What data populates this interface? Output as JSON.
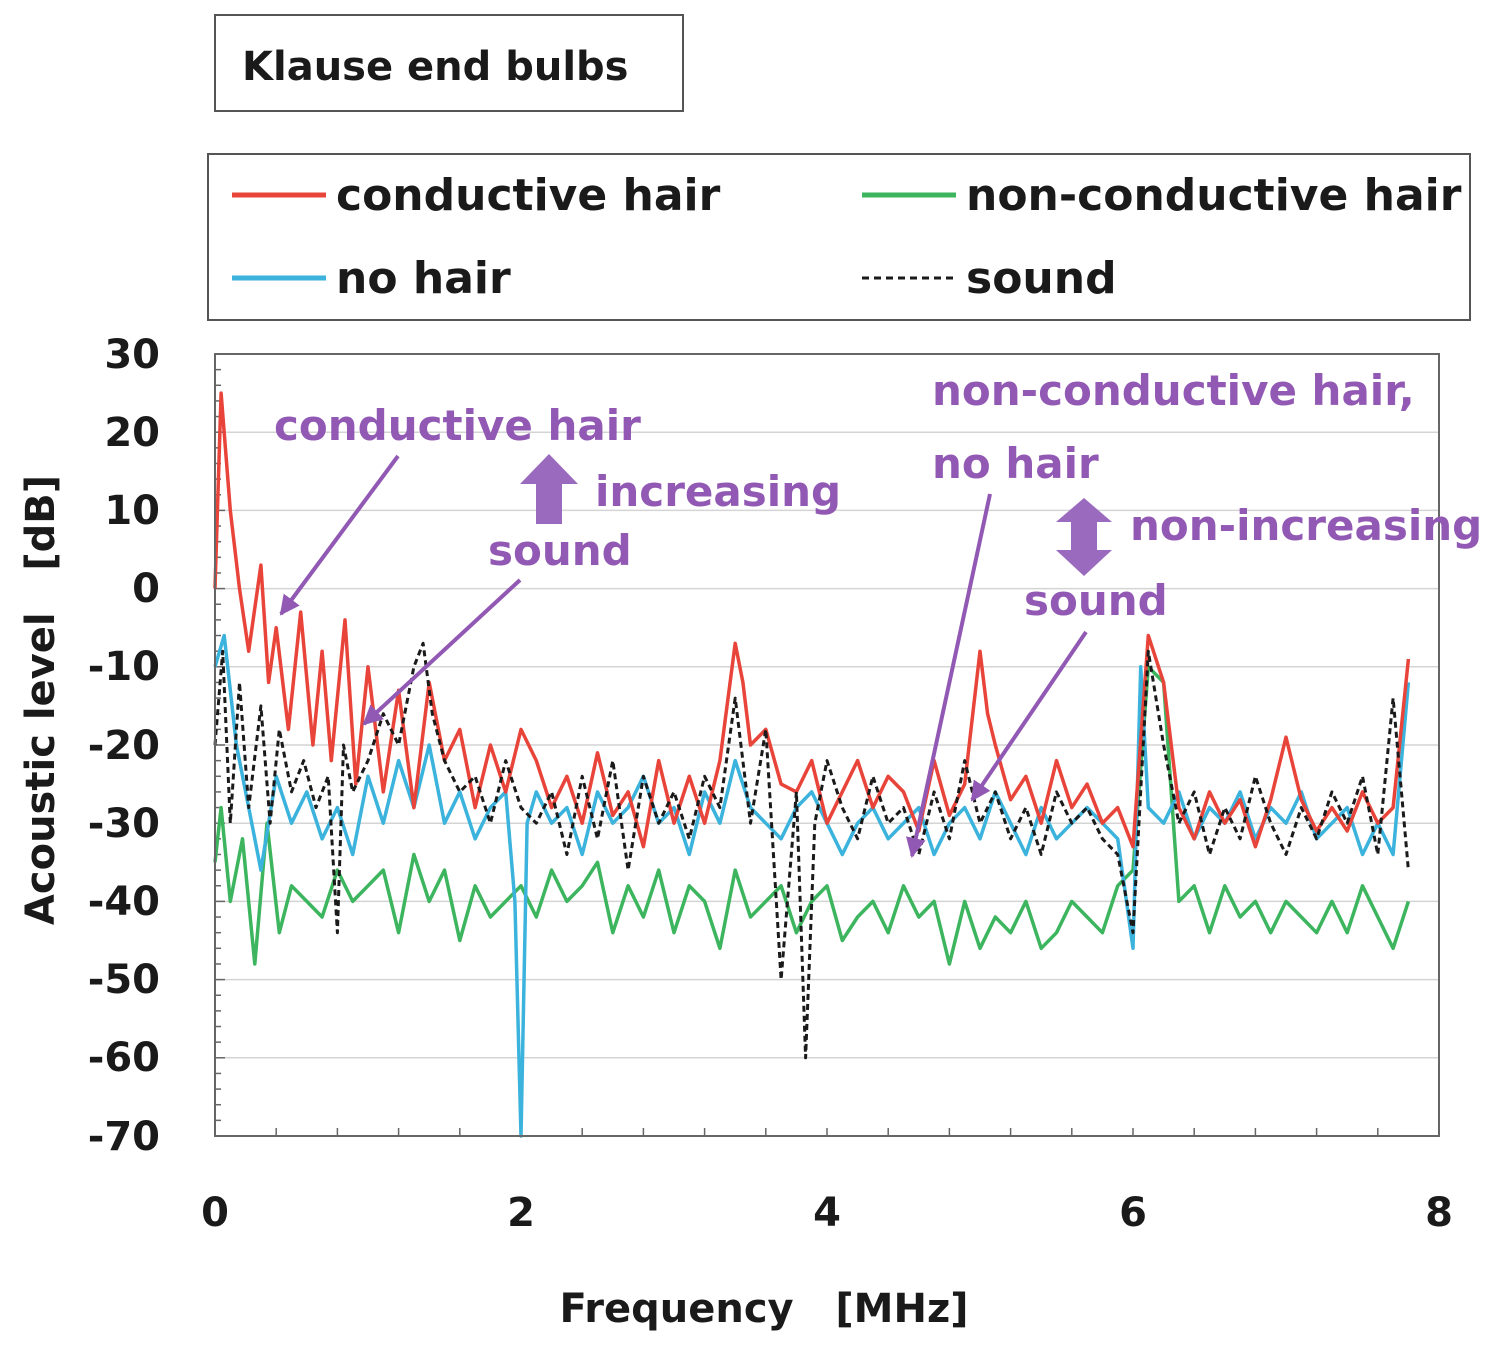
{
  "chart_data": {
    "type": "line",
    "title": "Klause end bulbs",
    "xlabel": "Frequency   [MHz]",
    "ylabel": "Acoustic level   [dB]",
    "xlim": [
      0,
      8
    ],
    "ylim": [
      -70,
      30
    ],
    "x_ticks": [
      "0",
      "2",
      "4",
      "6",
      "8"
    ],
    "y_ticks": [
      "30",
      "20",
      "10",
      "0",
      "-10",
      "-20",
      "-30",
      "-40",
      "-50",
      "-60",
      "-70"
    ],
    "grid": true,
    "legend": [
      {
        "label": "conductive hair",
        "color": "#e8443a",
        "dash": false
      },
      {
        "label": "non-conductive hair",
        "color": "#3cb55e",
        "dash": false
      },
      {
        "label": "no hair",
        "color": "#3bb3dc",
        "dash": false
      },
      {
        "label": "sound",
        "color": "#1a1a1a",
        "dash": true
      }
    ],
    "series": [
      {
        "name": "conductive hair",
        "color": "#e8443a",
        "x": [
          0.0,
          0.04,
          0.1,
          0.16,
          0.22,
          0.3,
          0.35,
          0.4,
          0.48,
          0.56,
          0.64,
          0.7,
          0.76,
          0.85,
          0.92,
          1.0,
          1.1,
          1.2,
          1.3,
          1.4,
          1.5,
          1.6,
          1.7,
          1.8,
          1.9,
          2.0,
          2.1,
          2.2,
          2.3,
          2.4,
          2.5,
          2.6,
          2.7,
          2.8,
          2.9,
          3.0,
          3.1,
          3.2,
          3.3,
          3.4,
          3.45,
          3.5,
          3.6,
          3.7,
          3.8,
          3.9,
          4.0,
          4.1,
          4.2,
          4.3,
          4.4,
          4.5,
          4.6,
          4.7,
          4.8,
          4.9,
          5.0,
          5.05,
          5.1,
          5.2,
          5.3,
          5.4,
          5.5,
          5.6,
          5.7,
          5.8,
          5.9,
          6.0,
          6.1,
          6.2,
          6.3,
          6.4,
          6.5,
          6.6,
          6.7,
          6.8,
          6.9,
          7.0,
          7.1,
          7.2,
          7.3,
          7.4,
          7.5,
          7.6,
          7.7,
          7.8
        ],
        "y": [
          0,
          25,
          10,
          0,
          -8,
          3,
          -12,
          -5,
          -18,
          -3,
          -20,
          -8,
          -22,
          -4,
          -25,
          -10,
          -26,
          -13,
          -28,
          -12,
          -22,
          -18,
          -28,
          -20,
          -26,
          -18,
          -22,
          -28,
          -24,
          -30,
          -21,
          -29,
          -26,
          -33,
          -22,
          -30,
          -24,
          -30,
          -22,
          -7,
          -12,
          -20,
          -18,
          -25,
          -26,
          -22,
          -30,
          -26,
          -22,
          -28,
          -24,
          -26,
          -31,
          -22,
          -29,
          -25,
          -8,
          -16,
          -20,
          -27,
          -24,
          -30,
          -22,
          -28,
          -25,
          -30,
          -28,
          -33,
          -6,
          -12,
          -28,
          -32,
          -26,
          -30,
          -27,
          -33,
          -27,
          -19,
          -27,
          -31,
          -28,
          -31,
          -26,
          -30,
          -28,
          -9
        ]
      },
      {
        "name": "non-conductive hair",
        "color": "#3cb55e",
        "x": [
          0.0,
          0.04,
          0.1,
          0.18,
          0.26,
          0.34,
          0.42,
          0.5,
          0.6,
          0.7,
          0.8,
          0.9,
          1.0,
          1.1,
          1.2,
          1.3,
          1.4,
          1.5,
          1.6,
          1.7,
          1.8,
          1.9,
          2.0,
          2.1,
          2.2,
          2.3,
          2.4,
          2.5,
          2.6,
          2.7,
          2.8,
          2.9,
          3.0,
          3.1,
          3.2,
          3.3,
          3.4,
          3.5,
          3.6,
          3.7,
          3.8,
          3.9,
          4.0,
          4.1,
          4.2,
          4.3,
          4.4,
          4.5,
          4.6,
          4.7,
          4.8,
          4.9,
          5.0,
          5.1,
          5.2,
          5.3,
          5.4,
          5.5,
          5.6,
          5.7,
          5.8,
          5.9,
          6.0,
          6.1,
          6.2,
          6.3,
          6.4,
          6.5,
          6.6,
          6.7,
          6.8,
          6.9,
          7.0,
          7.1,
          7.2,
          7.3,
          7.4,
          7.5,
          7.6,
          7.7,
          7.8
        ],
        "y": [
          -35,
          -28,
          -40,
          -32,
          -48,
          -30,
          -44,
          -38,
          -40,
          -42,
          -36,
          -40,
          -38,
          -36,
          -44,
          -34,
          -40,
          -36,
          -45,
          -38,
          -42,
          -40,
          -38,
          -42,
          -36,
          -40,
          -38,
          -35,
          -44,
          -38,
          -42,
          -36,
          -44,
          -38,
          -40,
          -46,
          -36,
          -42,
          -40,
          -38,
          -44,
          -40,
          -38,
          -45,
          -42,
          -40,
          -44,
          -38,
          -42,
          -40,
          -48,
          -40,
          -46,
          -42,
          -44,
          -40,
          -46,
          -44,
          -40,
          -42,
          -44,
          -38,
          -36,
          -10,
          -12,
          -40,
          -38,
          -44,
          -38,
          -42,
          -40,
          -44,
          -40,
          -42,
          -44,
          -40,
          -44,
          -38,
          -42,
          -46,
          -40
        ]
      },
      {
        "name": "no hair",
        "color": "#3bb3dc",
        "x": [
          0.0,
          0.06,
          0.14,
          0.22,
          0.3,
          0.4,
          0.5,
          0.6,
          0.7,
          0.8,
          0.9,
          1.0,
          1.1,
          1.2,
          1.3,
          1.4,
          1.5,
          1.6,
          1.7,
          1.8,
          1.9,
          1.96,
          2.0,
          2.04,
          2.1,
          2.2,
          2.3,
          2.4,
          2.5,
          2.6,
          2.7,
          2.8,
          2.9,
          3.0,
          3.1,
          3.2,
          3.3,
          3.4,
          3.5,
          3.6,
          3.7,
          3.8,
          3.9,
          4.0,
          4.1,
          4.2,
          4.3,
          4.4,
          4.5,
          4.6,
          4.7,
          4.8,
          4.9,
          5.0,
          5.1,
          5.2,
          5.3,
          5.4,
          5.5,
          5.6,
          5.7,
          5.8,
          5.9,
          6.0,
          6.05,
          6.1,
          6.2,
          6.3,
          6.4,
          6.5,
          6.6,
          6.7,
          6.8,
          6.9,
          7.0,
          7.1,
          7.2,
          7.3,
          7.4,
          7.5,
          7.6,
          7.7,
          7.8
        ],
        "y": [
          -10,
          -6,
          -20,
          -28,
          -36,
          -24,
          -30,
          -26,
          -32,
          -28,
          -34,
          -24,
          -30,
          -22,
          -28,
          -20,
          -30,
          -26,
          -32,
          -28,
          -26,
          -40,
          -70,
          -30,
          -26,
          -30,
          -28,
          -34,
          -26,
          -30,
          -28,
          -24,
          -30,
          -28,
          -34,
          -26,
          -30,
          -22,
          -28,
          -30,
          -32,
          -28,
          -26,
          -30,
          -34,
          -30,
          -28,
          -32,
          -30,
          -28,
          -34,
          -30,
          -28,
          -32,
          -26,
          -30,
          -34,
          -28,
          -32,
          -30,
          -28,
          -30,
          -32,
          -46,
          -10,
          -28,
          -30,
          -26,
          -32,
          -28,
          -30,
          -26,
          -32,
          -28,
          -30,
          -26,
          -32,
          -30,
          -28,
          -34,
          -30,
          -34,
          -12
        ]
      },
      {
        "name": "sound",
        "color": "#1a1a1a",
        "x": [
          0.0,
          0.05,
          0.1,
          0.16,
          0.22,
          0.3,
          0.36,
          0.42,
          0.5,
          0.58,
          0.66,
          0.74,
          0.8,
          0.84,
          0.9,
          1.0,
          1.1,
          1.2,
          1.3,
          1.36,
          1.42,
          1.5,
          1.6,
          1.7,
          1.8,
          1.9,
          2.0,
          2.1,
          2.2,
          2.3,
          2.4,
          2.5,
          2.6,
          2.7,
          2.8,
          2.9,
          3.0,
          3.1,
          3.2,
          3.3,
          3.4,
          3.5,
          3.6,
          3.7,
          3.8,
          3.86,
          3.92,
          4.0,
          4.1,
          4.2,
          4.3,
          4.4,
          4.5,
          4.6,
          4.7,
          4.8,
          4.9,
          5.0,
          5.1,
          5.2,
          5.3,
          5.4,
          5.5,
          5.6,
          5.7,
          5.8,
          5.9,
          6.0,
          6.1,
          6.2,
          6.3,
          6.4,
          6.5,
          6.6,
          6.7,
          6.8,
          6.9,
          7.0,
          7.1,
          7.2,
          7.3,
          7.4,
          7.5,
          7.6,
          7.7,
          7.8
        ],
        "y": [
          -20,
          -8,
          -30,
          -12,
          -28,
          -15,
          -30,
          -18,
          -26,
          -22,
          -28,
          -24,
          -44,
          -20,
          -26,
          -22,
          -16,
          -20,
          -10,
          -7,
          -16,
          -22,
          -26,
          -24,
          -30,
          -22,
          -28,
          -30,
          -26,
          -34,
          -24,
          -32,
          -22,
          -36,
          -24,
          -30,
          -26,
          -32,
          -24,
          -28,
          -14,
          -30,
          -18,
          -50,
          -26,
          -60,
          -30,
          -22,
          -28,
          -32,
          -24,
          -30,
          -28,
          -34,
          -26,
          -32,
          -22,
          -30,
          -26,
          -32,
          -28,
          -34,
          -26,
          -30,
          -28,
          -32,
          -34,
          -44,
          -8,
          -20,
          -30,
          -26,
          -34,
          -28,
          -32,
          -24,
          -30,
          -34,
          -28,
          -32,
          -26,
          -30,
          -24,
          -34,
          -14,
          -36
        ]
      }
    ],
    "annotations": [
      {
        "text": "conductive hair"
      },
      {
        "text": "increasing"
      },
      {
        "text": "sound"
      },
      {
        "text": "non-conductive hair,"
      },
      {
        "text": "no hair"
      },
      {
        "text": "non-increasing"
      },
      {
        "text": "sound"
      }
    ],
    "annotation_color": "#9159b3"
  }
}
